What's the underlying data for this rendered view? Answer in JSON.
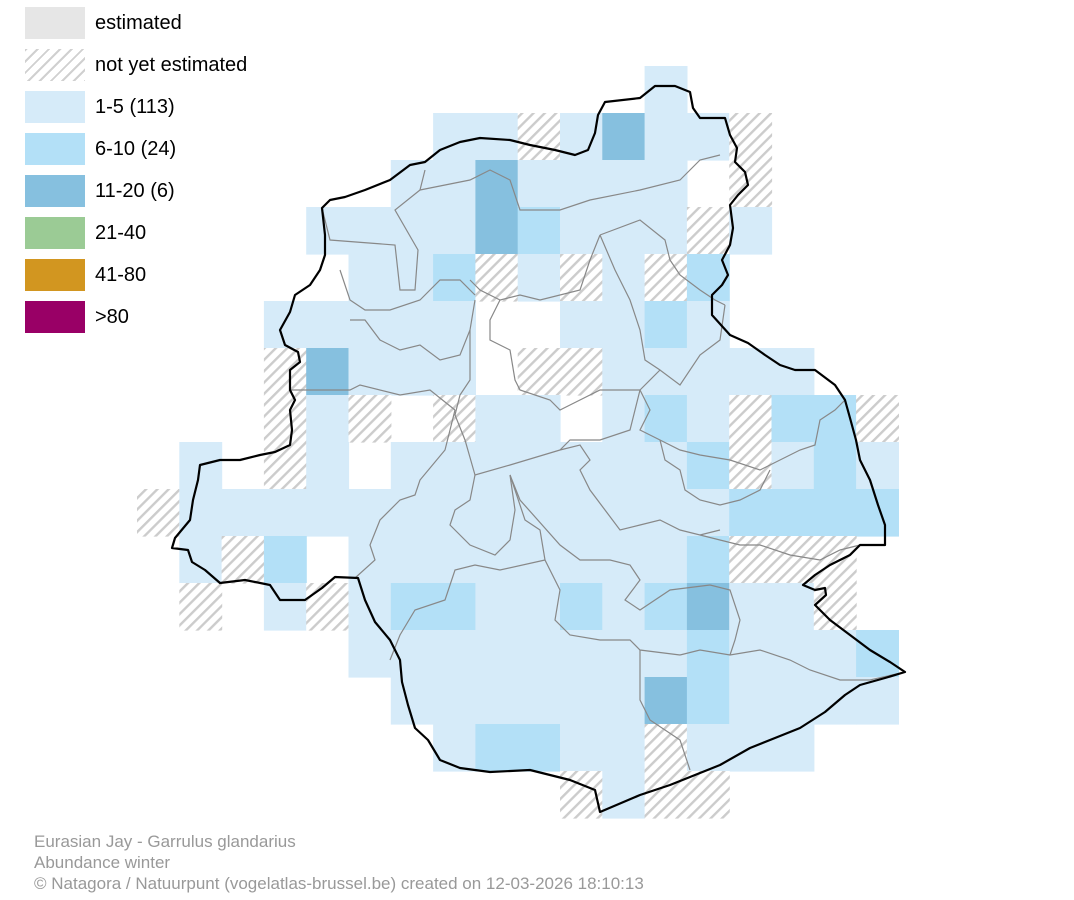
{
  "legend": {
    "items": [
      {
        "label": "estimated",
        "color": "#e6e6e6",
        "pattern": "solid"
      },
      {
        "label": "not yet estimated",
        "color": "#cccccc",
        "pattern": "hatch"
      },
      {
        "label": "1-5 (113)",
        "color": "#d6ebf9",
        "pattern": "solid"
      },
      {
        "label": "6-10 (24)",
        "color": "#b3e0f7",
        "pattern": "solid"
      },
      {
        "label": "11-20 (6)",
        "color": "#86c0df",
        "pattern": "solid"
      },
      {
        "label": "21-40",
        "color": "#9bcb95",
        "pattern": "solid"
      },
      {
        "label": "41-80",
        "color": "#d29620",
        "pattern": "solid"
      },
      {
        "label": ">80",
        "color": "#990066",
        "pattern": "solid"
      }
    ]
  },
  "caption": {
    "species": "Eurasian Jay - Garrulus glandarius",
    "subtitle": "Abundance winter",
    "credit": "© Natagora / Natuurpunt (vogelatlas-brussel.be) created on 12-03-2026 18:10:13"
  },
  "map": {
    "colors": {
      "outline": "#000000",
      "districts": "#888888",
      "hatch": "#cccccc"
    }
  }
}
